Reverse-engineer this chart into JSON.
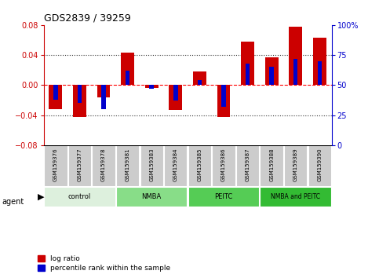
{
  "title": "GDS2839 / 39259",
  "samples": [
    "GSM159376",
    "GSM159377",
    "GSM159378",
    "GSM159381",
    "GSM159383",
    "GSM159384",
    "GSM159385",
    "GSM159386",
    "GSM159387",
    "GSM159388",
    "GSM159389",
    "GSM159390"
  ],
  "log_ratio": [
    -0.032,
    -0.042,
    -0.016,
    0.043,
    -0.004,
    -0.033,
    0.018,
    -0.043,
    0.058,
    0.037,
    0.078,
    0.063
  ],
  "percentile": [
    38,
    35,
    30,
    62,
    47,
    37,
    54,
    32,
    68,
    65,
    72,
    70
  ],
  "ylim": [
    -0.08,
    0.08
  ],
  "yticks_left": [
    -0.08,
    -0.04,
    0.0,
    0.04,
    0.08
  ],
  "yticks_right": [
    0,
    25,
    50,
    75,
    100
  ],
  "bar_color_red": "#cc0000",
  "bar_color_blue": "#0000cc",
  "bar_width": 0.55,
  "percentile_bar_width": 0.18,
  "bg_color": "#ffffff",
  "group_info": [
    {
      "label": "control",
      "start": 0,
      "end": 2,
      "color": "#ddf0dd"
    },
    {
      "label": "NMBA",
      "start": 3,
      "end": 5,
      "color": "#88dd88"
    },
    {
      "label": "PEITC",
      "start": 6,
      "end": 8,
      "color": "#55cc55"
    },
    {
      "label": "NMBA and PEITC",
      "start": 9,
      "end": 11,
      "color": "#33bb33"
    }
  ]
}
